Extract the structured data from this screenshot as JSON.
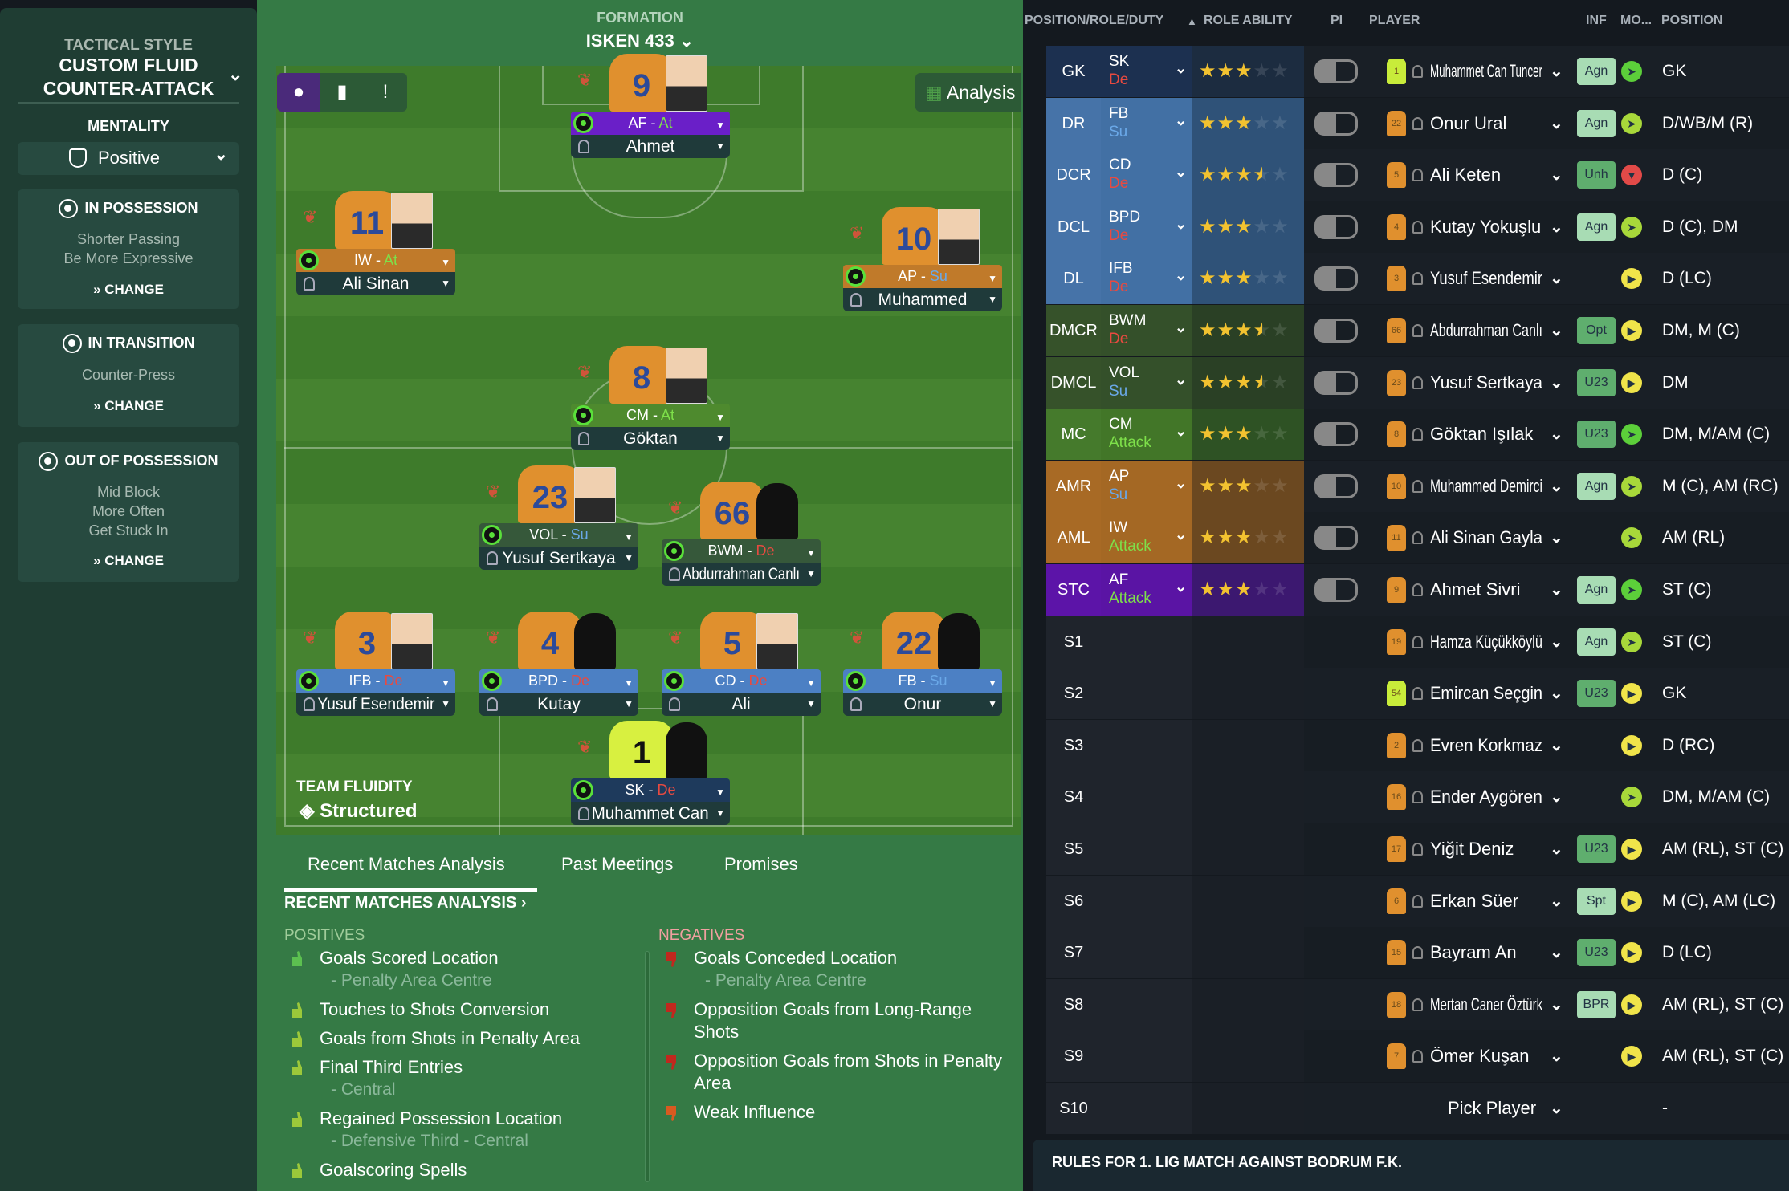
{
  "sidebar": {
    "tactical_style_label": "TACTICAL STYLE",
    "tactical_style_line1": "CUSTOM FLUID",
    "tactical_style_line2": "COUNTER-ATTACK",
    "mentality_label": "MENTALITY",
    "mentality_value": "Positive",
    "in_possession": {
      "title": "IN POSSESSION",
      "lines": [
        "Shorter Passing",
        "Be More Expressive"
      ],
      "change": "CHANGE"
    },
    "in_transition": {
      "title": "IN TRANSITION",
      "lines": [
        "Counter-Press"
      ],
      "change": "CHANGE"
    },
    "out_of_possession": {
      "title": "OUT OF POSSESSION",
      "lines": [
        "Mid Block",
        "More Often",
        "Get Stuck In"
      ],
      "change": "CHANGE"
    }
  },
  "formation": {
    "label": "FORMATION",
    "name": "ISKEN 433",
    "analysis": "Analysis",
    "fluidity_label": "TEAM FLUIDITY",
    "fluidity_value": "Structured"
  },
  "pitch_players": [
    {
      "number": "9",
      "role": "AF",
      "duty": "At",
      "name": "Ahmet",
      "role_color": "#6a1fc8",
      "photo": true
    },
    {
      "number": "11",
      "role": "IW",
      "duty": "At",
      "name": "Ali Sinan",
      "role_color": "#c07a2a",
      "photo": true
    },
    {
      "number": "10",
      "role": "AP",
      "duty": "Su",
      "name": "Muhammed",
      "role_color": "#c07a2a",
      "photo": true
    },
    {
      "number": "8",
      "role": "CM",
      "duty": "At",
      "name": "Göktan",
      "role_color": "#4e8a2e",
      "photo": true
    },
    {
      "number": "23",
      "role": "VOL",
      "duty": "Su",
      "name": "Yusuf Sertkaya",
      "role_color": "#36583a",
      "photo": true
    },
    {
      "number": "66",
      "role": "BWM",
      "duty": "De",
      "name": "Abdurrahman Canlı",
      "role_color": "#36583a",
      "photo": false
    },
    {
      "number": "3",
      "role": "IFB",
      "duty": "De",
      "name": "Yusuf Esendemir",
      "role_color": "#4c80c4",
      "photo": true
    },
    {
      "number": "4",
      "role": "BPD",
      "duty": "De",
      "name": "Kutay",
      "role_color": "#4c80c4",
      "photo": false
    },
    {
      "number": "5",
      "role": "CD",
      "duty": "De",
      "name": "Ali",
      "role_color": "#4c80c4",
      "photo": true
    },
    {
      "number": "22",
      "role": "FB",
      "duty": "Su",
      "name": "Onur",
      "role_color": "#4c80c4",
      "photo": false
    },
    {
      "number": "1",
      "role": "SK",
      "duty": "De",
      "name": "Muhammet Can",
      "role_color": "#1e3a5c",
      "photo": false,
      "gk": true
    }
  ],
  "analysis": {
    "tabs": [
      "Recent Matches Analysis",
      "Past Meetings",
      "Promises"
    ],
    "active_tab": 0,
    "section_title": "RECENT MATCHES ANALYSIS ›",
    "positives_label": "POSITIVES",
    "negatives_label": "NEGATIVES",
    "positives": [
      {
        "title": "Goals Scored Location",
        "sub": "- Penalty Area Centre"
      },
      {
        "title": "Touches to Shots Conversion"
      },
      {
        "title": "Goals from Shots in Penalty Area"
      },
      {
        "title": "Final Third Entries",
        "sub": "- Central"
      },
      {
        "title": "Regained Possession Location",
        "sub": "- Defensive Third - Central"
      },
      {
        "title": "Goalscoring Spells"
      }
    ],
    "negatives": [
      {
        "title": "Goals Conceded Location",
        "sub": "- Penalty Area Centre",
        "color": "#c0281e"
      },
      {
        "title": "Opposition Goals from Long-Range Shots",
        "color": "#c0281e"
      },
      {
        "title": "Opposition Goals from Shots in Penalty Area",
        "color": "#c0281e"
      },
      {
        "title": "Weak Influence",
        "color": "#d85a20"
      }
    ]
  },
  "table": {
    "headers": {
      "position_role_duty": "POSITION/ROLE/DUTY",
      "sort": "▲",
      "role_ability": "ROLE ABILITY",
      "pi": "PI",
      "player": "PLAYER",
      "inf": "INF",
      "morale": "MO...",
      "position": "POSITION"
    },
    "rows": [
      {
        "slot": "GK",
        "role": "SK",
        "duty": "De",
        "stars": 3,
        "number": "1",
        "gk": true,
        "player": "Muhammet Can Tuncer",
        "inf": "Agn",
        "morale": "green",
        "position": "GK",
        "colors": [
          "#1c3050",
          "#1c3050",
          "#1c2c40"
        ]
      },
      {
        "slot": "DR",
        "role": "FB",
        "duty": "Su",
        "stars": 3,
        "number": "22",
        "player": "Onur Ural",
        "inf": "Agn",
        "morale": "lime",
        "position": "D/WB/M (R)",
        "colors": [
          "#4673a8",
          "#4270a4",
          "#2f5278"
        ]
      },
      {
        "slot": "DCR",
        "role": "CD",
        "duty": "De",
        "stars": 3.5,
        "number": "5",
        "player": "Ali Keten",
        "inf": "Unh",
        "morale": "red",
        "position": "D (C)",
        "colors": [
          "#4673a8",
          "#4270a4",
          "#2f5278"
        ]
      },
      {
        "slot": "DCL",
        "role": "BPD",
        "duty": "De",
        "stars": 3,
        "number": "4",
        "player": "Kutay Yokuşlu",
        "inf": "Agn",
        "morale": "lime",
        "position": "D (C), DM",
        "colors": [
          "#4673a8",
          "#4270a4",
          "#2f5278"
        ]
      },
      {
        "slot": "DL",
        "role": "IFB",
        "duty": "De",
        "stars": 3,
        "number": "3",
        "player": "Yusuf Esendemir",
        "inf": "",
        "morale": "yellow",
        "position": "D (LC)",
        "colors": [
          "#4673a8",
          "#4270a4",
          "#2f5278"
        ]
      },
      {
        "slot": "DMCR",
        "role": "BWM",
        "duty": "De",
        "stars": 3.5,
        "number": "66",
        "player": "Abdurrahman Canlı",
        "inf": "Opt",
        "morale": "yellow",
        "position": "DM, M (C)",
        "colors": [
          "#36522a",
          "#34502a",
          "#2a4025"
        ]
      },
      {
        "slot": "DMCL",
        "role": "VOL",
        "duty": "Su",
        "stars": 3.5,
        "number": "23",
        "player": "Yusuf Sertkaya",
        "inf": "U23",
        "morale": "yellow",
        "position": "DM",
        "colors": [
          "#36522a",
          "#34502a",
          "#2a4025"
        ]
      },
      {
        "slot": "MC",
        "role": "CM",
        "duty": "Attack",
        "stars": 3,
        "number": "8",
        "player": "Göktan Işılak",
        "inf": "U23",
        "morale": "green",
        "position": "DM, M/AM (C)",
        "colors": [
          "#457a2c",
          "#427628",
          "#2e5224"
        ]
      },
      {
        "slot": "AMR",
        "role": "AP",
        "duty": "Su",
        "stars": 3,
        "number": "10",
        "player": "Muhammed Demirci",
        "inf": "Agn",
        "morale": "lime",
        "position": "M (C), AM (RC)",
        "colors": [
          "#a86a25",
          "#a46824",
          "#6b4820"
        ]
      },
      {
        "slot": "AML",
        "role": "IW",
        "duty": "Attack",
        "stars": 3,
        "number": "11",
        "player": "Ali Sinan Gayla",
        "inf": "",
        "morale": "lime",
        "position": "AM (RL)",
        "colors": [
          "#a86a25",
          "#a46824",
          "#6b4820"
        ]
      },
      {
        "slot": "STC",
        "role": "AF",
        "duty": "Attack",
        "stars": 3,
        "number": "9",
        "player": "Ahmet Sivri",
        "inf": "Agn",
        "morale": "green",
        "position": "ST (C)",
        "colors": [
          "#5c14a8",
          "#5a14a4",
          "#3c1870"
        ]
      },
      {
        "slot": "S1",
        "number": "19",
        "player": "Hamza Küçükköylü",
        "inf": "Agn",
        "morale": "lime",
        "position": "ST (C)"
      },
      {
        "slot": "S2",
        "number": "54",
        "gk": true,
        "player": "Emircan Seçgin",
        "inf": "U23",
        "morale": "yellow",
        "position": "GK"
      },
      {
        "slot": "S3",
        "number": "2",
        "player": "Evren Korkmaz",
        "inf": "",
        "morale": "yellow",
        "position": "D (RC)"
      },
      {
        "slot": "S4",
        "number": "16",
        "player": "Ender Aygören",
        "inf": "",
        "morale": "lime",
        "position": "DM, M/AM (C)"
      },
      {
        "slot": "S5",
        "number": "17",
        "player": "Yiğit Deniz",
        "inf": "U23",
        "morale": "yellow",
        "position": "AM (RL), ST (C)"
      },
      {
        "slot": "S6",
        "number": "6",
        "player": "Erkan Süer",
        "inf": "Spt",
        "morale": "yellow",
        "position": "M (C), AM (LC)"
      },
      {
        "slot": "S7",
        "number": "15",
        "player": "Bayram An",
        "inf": "U23",
        "morale": "yellow",
        "position": "D (LC)"
      },
      {
        "slot": "S8",
        "number": "18",
        "player": "Mertan Caner Öztürk",
        "inf": "BPR",
        "morale": "yellow",
        "position": "AM (RL), ST (C)"
      },
      {
        "slot": "S9",
        "number": "7",
        "player": "Ömer Kuşan",
        "inf": "",
        "morale": "yellow",
        "position": "AM (RL), ST (C)"
      },
      {
        "slot": "S10",
        "player": "Pick Player",
        "pick": true,
        "position": "-"
      }
    ],
    "footer": "RULES FOR 1. LIG MATCH AGAINST BODRUM F.K."
  },
  "colors": {
    "duty_De": "#e84a40",
    "duty_Su": "#6aa8e8",
    "duty_At": "#7ee04a",
    "morale_green": "#5ccf3a",
    "morale_lime": "#a8d83a",
    "morale_red": "#e24a48",
    "morale_yellow": "#f0e44a",
    "inf_light": "#a8dcb4",
    "inf_dark": "#5fae6e"
  }
}
